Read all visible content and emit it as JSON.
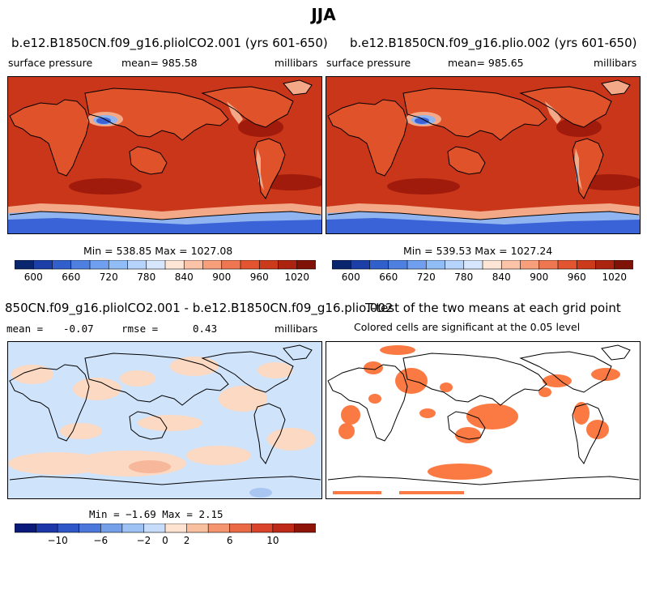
{
  "title": "JJA",
  "colors": {
    "land_high": "#d8431f",
    "ocean": "#c9361a",
    "ocean_dark": "#a01b0c",
    "highland": "#e8744a",
    "highland2": "#f3a988",
    "low": "#3b63d8",
    "low_light": "#8fb4f0",
    "diff_pos": "#fcd9c2",
    "diff_neg": "#cfe3fb",
    "signif": "#fb7a43"
  },
  "chart_data": [
    {
      "type": "heatmap",
      "title": "b.e12.B1850CN.f09_g16.pliolCO2.001 (yrs 601-650)",
      "variable": "surface pressure",
      "mean_label": "mean= 985.58",
      "units": "millibars",
      "stats": "Min = 538.85 Max = 1027.08",
      "min": 538.85,
      "max": 1027.08,
      "mean": 985.58,
      "colorbar_levels": [
        580,
        600,
        620,
        640,
        660,
        680,
        700,
        720,
        740,
        760,
        780,
        800,
        820,
        840,
        860,
        880,
        900,
        920,
        940,
        960,
        980,
        1000,
        1020,
        1040
      ],
      "colorbar_ticks": [
        "600",
        "660",
        "720",
        "780",
        "840",
        "900",
        "960",
        "1020"
      ]
    },
    {
      "type": "heatmap",
      "title": "b.e12.B1850CN.f09_g16.plio.002 (yrs 601-650)",
      "variable": "surface pressure",
      "mean_label": "mean= 985.65",
      "units": "millibars",
      "stats": "Min = 539.53 Max = 1027.24",
      "min": 539.53,
      "max": 1027.24,
      "mean": 985.65,
      "colorbar_ticks": [
        "600",
        "660",
        "720",
        "780",
        "840",
        "900",
        "960",
        "1020"
      ]
    },
    {
      "type": "heatmap",
      "title": "850CN.f09_g16.pliolCO2.001 - b.e12.B1850CN.f09_g16.plio.002",
      "mean_label": "mean =",
      "mean_value": "-0.07",
      "rmse_label": "rmse =",
      "rmse_value": "0.43",
      "units": "millibars",
      "stats": "Min =  −1.69 Max =   2.15",
      "min": -1.69,
      "max": 2.15,
      "mean": -0.07,
      "rmse": 0.43,
      "colorbar_ticks": [
        "−10",
        "−6",
        "−2",
        "0",
        "2",
        "6",
        "10"
      ]
    },
    {
      "type": "heatmap",
      "title": "T-test of the two means at each grid point",
      "subtitle": "Colored cells are significant at the 0.05 level"
    }
  ]
}
